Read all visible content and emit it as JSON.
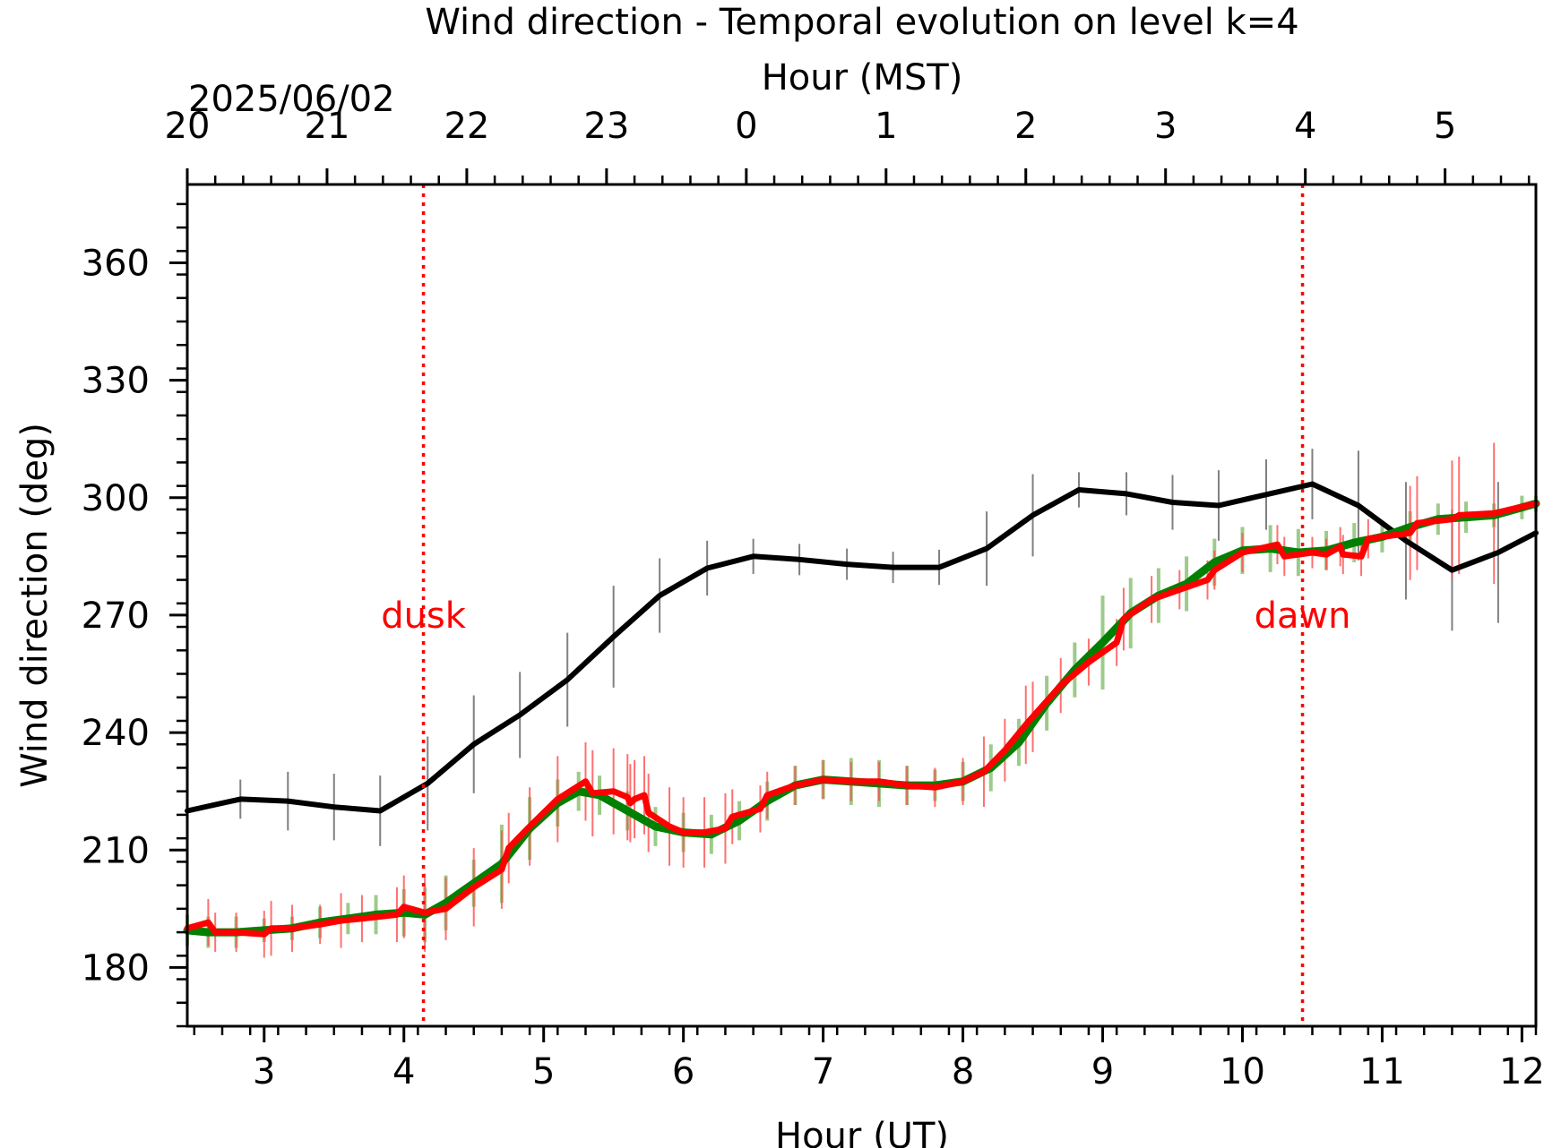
{
  "chart_data": {
    "type": "line",
    "title": "Wind direction - Temporal evolution on level k=4",
    "xlabel": "Hour (UT)",
    "ylabel": "Wind direction (deg)",
    "top_xlabel": "Hour (MST)",
    "date_label": "2025/06/02",
    "xlim": [
      2.45,
      12.1
    ],
    "ylim": [
      165,
      380
    ],
    "x_ticks": [
      3,
      4,
      5,
      6,
      7,
      8,
      9,
      10,
      11,
      12
    ],
    "x_tick_labels": [
      "3",
      "4",
      "5",
      "6",
      "7",
      "8",
      "9",
      "10",
      "11",
      "12"
    ],
    "y_ticks": [
      180,
      210,
      240,
      270,
      300,
      330,
      360
    ],
    "y_tick_labels": [
      "180",
      "210",
      "240",
      "270",
      "300",
      "330",
      "360"
    ],
    "top_ticks_ut": [
      2.45,
      3.45,
      4.45,
      5.45,
      6.45,
      7.45,
      8.45,
      9.45,
      10.45,
      11.45
    ],
    "top_tick_labels": [
      "20",
      "21",
      "22",
      "23",
      "0",
      "1",
      "2",
      "3",
      "4",
      "5"
    ],
    "grid": false,
    "annotations": [
      {
        "label": "dusk",
        "x": 4.14,
        "y": 270,
        "color": "#ff0000"
      },
      {
        "label": "dawn",
        "x": 10.43,
        "y": 270,
        "color": "#ff0000"
      }
    ],
    "series": [
      {
        "color": "#000000",
        "x": [
          2.45,
          2.83,
          3.17,
          3.5,
          3.83,
          4.17,
          4.5,
          4.83,
          5.17,
          5.5,
          5.83,
          6.17,
          6.5,
          6.83,
          7.17,
          7.5,
          7.83,
          8.17,
          8.5,
          8.83,
          9.17,
          9.5,
          9.83,
          10.17,
          10.5,
          10.83,
          11.17,
          11.5,
          11.83,
          12.1
        ],
        "y": [
          220,
          223,
          222.5,
          221,
          220,
          227,
          237,
          244.5,
          253.5,
          264.5,
          275,
          282,
          285,
          284.2,
          283,
          282.2,
          282.2,
          287,
          295.5,
          302,
          301,
          298.8,
          298,
          300.8,
          303.5,
          298,
          289,
          281.5,
          286,
          291
        ],
        "err": [
          5,
          5,
          7.5,
          8.5,
          9,
          12,
          12.5,
          11,
          12,
          13,
          9.5,
          7,
          4.5,
          4,
          4,
          4,
          4.5,
          9.5,
          10.5,
          4.5,
          5.5,
          7,
          9,
          9,
          9,
          14,
          15,
          15.5,
          18,
          20
        ]
      },
      {
        "color": "#008000",
        "x": [
          2.45,
          2.6,
          2.8,
          3.0,
          3.2,
          3.4,
          3.6,
          3.8,
          4.0,
          4.15,
          4.3,
          4.5,
          4.7,
          4.9,
          5.1,
          5.25,
          5.4,
          5.6,
          5.8,
          6.0,
          6.2,
          6.4,
          6.6,
          6.8,
          7.0,
          7.2,
          7.4,
          7.6,
          7.8,
          8.0,
          8.2,
          8.4,
          8.6,
          8.8,
          9.0,
          9.2,
          9.4,
          9.6,
          9.8,
          10.0,
          10.2,
          10.4,
          10.6,
          10.8,
          11.0,
          11.2,
          11.4,
          11.6,
          11.8,
          12.0,
          12.1
        ],
        "y": [
          189.5,
          189,
          189,
          189.5,
          190,
          191.5,
          192.5,
          193.5,
          194,
          193.5,
          196.5,
          201.5,
          206.5,
          215.5,
          222,
          225,
          224,
          220,
          216,
          214.5,
          214,
          217.5,
          222.5,
          226.5,
          228,
          227.5,
          227,
          226.5,
          226.5,
          227.5,
          231,
          237.5,
          247.5,
          256,
          263,
          270.5,
          275,
          278,
          283.5,
          286.5,
          287,
          286,
          286.5,
          288.5,
          290,
          292.5,
          294.5,
          295,
          295.5,
          297.5,
          298.5
        ],
        "err": [
          4,
          4,
          4,
          3,
          3,
          4,
          4,
          5,
          6,
          7,
          7,
          6,
          10,
          8,
          6,
          5,
          5,
          5,
          5,
          5,
          5,
          5,
          5,
          5,
          5,
          6,
          6,
          5,
          4,
          5,
          6,
          6,
          7,
          7,
          12,
          9,
          7,
          7,
          6,
          6,
          6,
          6,
          5,
          5,
          4,
          4,
          4,
          4,
          3,
          3,
          2
        ]
      },
      {
        "color": "#ff0000",
        "x": [
          2.45,
          2.6,
          2.65,
          2.8,
          3.0,
          3.05,
          3.2,
          3.4,
          3.55,
          3.7,
          3.95,
          4.0,
          4.15,
          4.3,
          4.5,
          4.7,
          4.75,
          4.9,
          5.1,
          5.3,
          5.35,
          5.5,
          5.6,
          5.62,
          5.65,
          5.72,
          5.75,
          5.9,
          6.0,
          6.15,
          6.3,
          6.35,
          6.55,
          6.6,
          6.8,
          7.0,
          7.2,
          7.4,
          7.6,
          7.8,
          8.0,
          8.15,
          8.3,
          8.45,
          8.5,
          8.7,
          8.9,
          9.1,
          9.15,
          9.35,
          9.55,
          9.75,
          9.8,
          10.0,
          10.25,
          10.3,
          10.5,
          10.6,
          10.7,
          10.72,
          10.85,
          10.9,
          11.2,
          11.25,
          11.5,
          11.55,
          11.8,
          12.1
        ],
        "y": [
          190,
          191.5,
          189,
          189,
          188.5,
          190,
          190,
          191,
          192,
          192.5,
          193.5,
          195.5,
          194,
          195,
          200.5,
          205,
          210.5,
          216,
          223,
          227.5,
          224.5,
          225,
          223.5,
          222,
          223,
          224,
          219.5,
          216,
          214.5,
          214.5,
          215.5,
          218.5,
          220.5,
          224,
          226.5,
          228,
          227.5,
          227.5,
          226.5,
          226,
          227.5,
          230,
          235.5,
          242,
          244,
          252,
          258,
          263,
          269,
          274,
          276.5,
          279,
          281.5,
          286,
          288,
          285,
          286,
          285.5,
          287.5,
          285.5,
          285,
          289.5,
          291,
          293.5,
          294.5,
          295.5,
          296,
          298.5
        ],
        "err": [
          5,
          6,
          5,
          5,
          6,
          7,
          6,
          5,
          7,
          6,
          7,
          8,
          10,
          8,
          10,
          10,
          9,
          10,
          11,
          10,
          11,
          11,
          11,
          10,
          10,
          10,
          10,
          10,
          9,
          9,
          9,
          7,
          6,
          6,
          5,
          5,
          5,
          5,
          5,
          5,
          6,
          9,
          8,
          10,
          9,
          7,
          6,
          6,
          8,
          6,
          5,
          5,
          5,
          5,
          5,
          5,
          4,
          4,
          5,
          5,
          5,
          5,
          12,
          12,
          15,
          15,
          18,
          18
        ]
      }
    ]
  }
}
